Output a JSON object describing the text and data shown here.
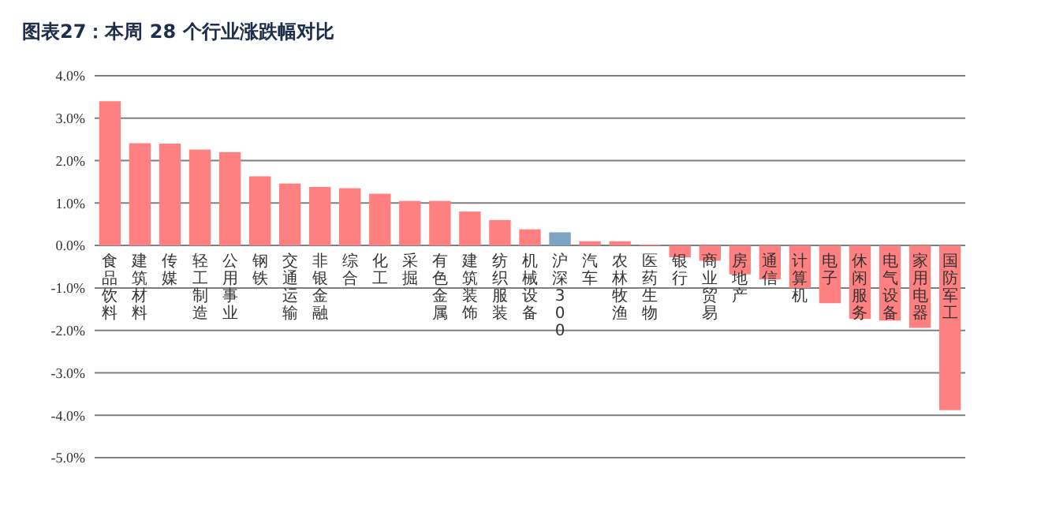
{
  "chart_data": {
    "type": "bar",
    "title": "图表27：本周 28 个行业涨跌幅对比",
    "categories": [
      "食品饮料",
      "建筑材料",
      "传媒",
      "轻工制造",
      "公用事业",
      "钢铁",
      "交通运输",
      "非银金融",
      "综合",
      "化工",
      "采掘",
      "有色金属",
      "建筑装饰",
      "纺织服装",
      "机械设备",
      "沪深300",
      "汽车",
      "农林牧渔",
      "医药生物",
      "银行",
      "商业贸易",
      "房地产",
      "通信",
      "计算机",
      "电子",
      "休闲服务",
      "电气设备",
      "家用电器",
      "国防军工"
    ],
    "values": [
      3.4,
      2.41,
      2.4,
      2.26,
      2.2,
      1.63,
      1.46,
      1.38,
      1.35,
      1.22,
      1.05,
      1.05,
      0.8,
      0.6,
      0.38,
      0.31,
      0.1,
      0.1,
      0.02,
      -0.28,
      -0.36,
      -0.68,
      -0.8,
      -1.0,
      -1.36,
      -1.73,
      -1.77,
      -1.94,
      -3.88
    ],
    "colors": [
      "#ff8080",
      "#ff8080",
      "#ff8080",
      "#ff8080",
      "#ff8080",
      "#ff8080",
      "#ff8080",
      "#ff8080",
      "#ff8080",
      "#ff8080",
      "#ff8080",
      "#ff8080",
      "#ff8080",
      "#ff8080",
      "#ff8080",
      "#7fa3c2",
      "#ff8080",
      "#ff8080",
      "#ff8080",
      "#ff8080",
      "#ff8080",
      "#ff8080",
      "#ff8080",
      "#ff8080",
      "#ff8080",
      "#ff8080",
      "#ff8080",
      "#ff8080",
      "#ff8080"
    ],
    "ylim": [
      -5,
      4
    ],
    "yticks": [
      {
        "value": 4,
        "label": "4.0%"
      },
      {
        "value": 3,
        "label": "3.0%"
      },
      {
        "value": 2,
        "label": "2.0%"
      },
      {
        "value": 1,
        "label": "1.0%"
      },
      {
        "value": 0,
        "label": "0.0%"
      },
      {
        "value": -1,
        "label": "-1.0%"
      },
      {
        "value": -2,
        "label": "-2.0%"
      },
      {
        "value": -3,
        "label": "-3.0%"
      },
      {
        "value": -4,
        "label": "-4.0%"
      },
      {
        "value": -5,
        "label": "-5.0%"
      }
    ],
    "grid": "y"
  }
}
